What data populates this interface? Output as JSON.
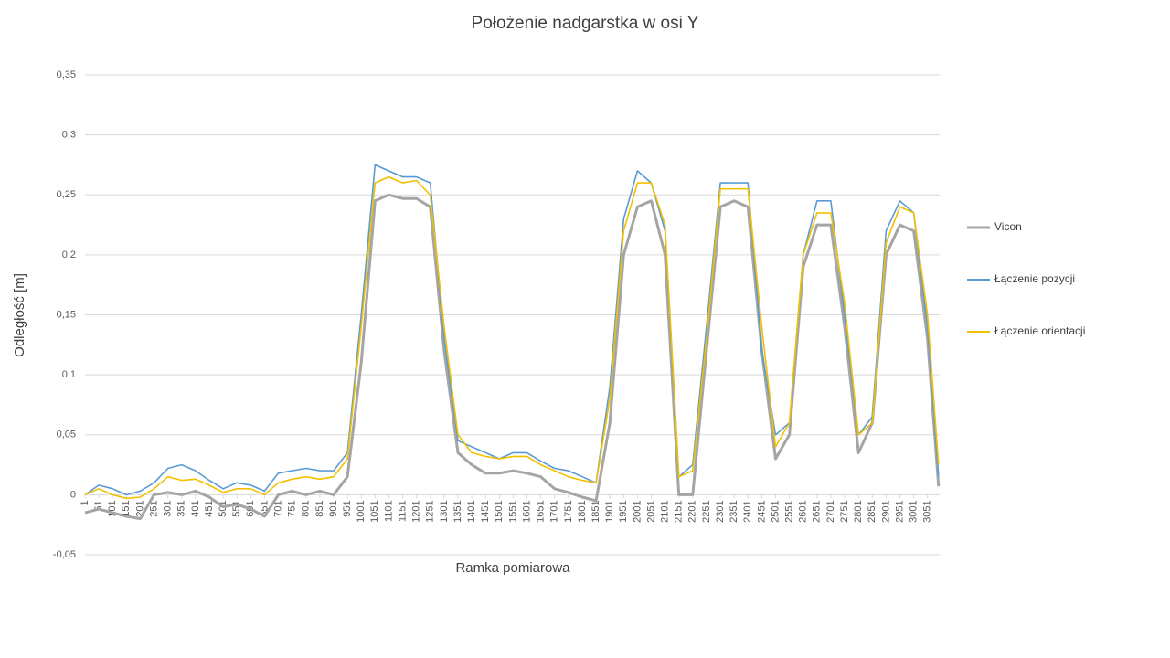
{
  "chart_data": {
    "type": "line",
    "title": "Położenie nadgarstka w osi Y",
    "xlabel": "Ramka pomiarowa",
    "ylabel": "Odległość [m]",
    "x": [
      1,
      51,
      101,
      151,
      201,
      251,
      301,
      351,
      401,
      451,
      501,
      551,
      601,
      651,
      701,
      751,
      801,
      851,
      901,
      951,
      1001,
      1051,
      1101,
      1151,
      1201,
      1251,
      1301,
      1351,
      1401,
      1451,
      1501,
      1551,
      1601,
      1651,
      1701,
      1751,
      1801,
      1851,
      1901,
      1951,
      2001,
      2051,
      2101,
      2151,
      2201,
      2251,
      2301,
      2351,
      2401,
      2451,
      2501,
      2551,
      2601,
      2651,
      2701,
      2751,
      2801,
      2851,
      2901,
      2951,
      3001,
      3051,
      3091
    ],
    "xlim": [
      1,
      3095
    ],
    "xticks": [
      1,
      51,
      101,
      151,
      201,
      251,
      301,
      351,
      401,
      451,
      501,
      551,
      601,
      651,
      701,
      751,
      801,
      851,
      901,
      951,
      1001,
      1051,
      1101,
      1151,
      1201,
      1251,
      1301,
      1351,
      1401,
      1451,
      1501,
      1551,
      1601,
      1651,
      1701,
      1751,
      1801,
      1851,
      1901,
      1951,
      2001,
      2051,
      2101,
      2151,
      2201,
      2251,
      2301,
      2351,
      2401,
      2451,
      2501,
      2551,
      2601,
      2651,
      2701,
      2751,
      2801,
      2851,
      2901,
      2951,
      3001,
      3051
    ],
    "ylim": [
      -0.05,
      0.35
    ],
    "yticks": [
      {
        "value": -0.05,
        "label": "-0,05"
      },
      0,
      {
        "value": 0.05,
        "label": "0,05"
      },
      {
        "value": 0.1,
        "label": "0,1"
      },
      {
        "value": 0.15,
        "label": "0,15"
      },
      {
        "value": 0.2,
        "label": "0,2"
      },
      {
        "value": 0.25,
        "label": "0,25"
      },
      {
        "value": 0.3,
        "label": "0,3"
      },
      {
        "value": 0.35,
        "label": "0,35"
      }
    ],
    "grid": true,
    "legend": "right",
    "series": [
      {
        "name": "Vicon",
        "color": "#a5a5a5",
        "values": [
          -0.015,
          -0.012,
          -0.015,
          -0.018,
          -0.02,
          0.0,
          0.002,
          0.0,
          0.003,
          -0.002,
          -0.01,
          -0.008,
          -0.012,
          -0.018,
          0.0,
          0.003,
          0.0,
          0.003,
          0.0,
          0.015,
          0.11,
          0.245,
          0.25,
          0.247,
          0.247,
          0.24,
          0.12,
          0.035,
          0.025,
          0.018,
          0.018,
          0.02,
          0.018,
          0.015,
          0.005,
          0.002,
          -0.002,
          -0.005,
          0.06,
          0.2,
          0.24,
          0.245,
          0.2,
          0.0,
          0.0,
          0.12,
          0.24,
          0.245,
          0.24,
          0.12,
          0.03,
          0.05,
          0.19,
          0.225,
          0.225,
          0.14,
          0.035,
          0.06,
          0.2,
          0.225,
          0.22,
          0.13,
          0.007
        ]
      },
      {
        "name": "Łączenie pozycji",
        "color": "#5b9bd5",
        "values": [
          0.0,
          0.008,
          0.005,
          0.0,
          0.003,
          0.01,
          0.022,
          0.025,
          0.02,
          0.012,
          0.005,
          0.01,
          0.008,
          0.003,
          0.018,
          0.02,
          0.022,
          0.02,
          0.02,
          0.035,
          0.15,
          0.275,
          0.27,
          0.265,
          0.265,
          0.26,
          0.13,
          0.045,
          0.04,
          0.035,
          0.03,
          0.035,
          0.035,
          0.028,
          0.022,
          0.02,
          0.015,
          0.01,
          0.09,
          0.23,
          0.27,
          0.26,
          0.22,
          0.015,
          0.025,
          0.14,
          0.26,
          0.26,
          0.26,
          0.12,
          0.05,
          0.06,
          0.2,
          0.245,
          0.245,
          0.15,
          0.05,
          0.065,
          0.22,
          0.245,
          0.235,
          0.14,
          0.015
        ]
      },
      {
        "name": "Łączenie orientacji",
        "color": "#f2c000",
        "values": [
          0.0,
          0.005,
          0.0,
          -0.003,
          -0.002,
          0.005,
          0.015,
          0.012,
          0.013,
          0.008,
          0.002,
          0.005,
          0.005,
          0.0,
          0.01,
          0.013,
          0.015,
          0.013,
          0.015,
          0.03,
          0.14,
          0.26,
          0.265,
          0.26,
          0.262,
          0.25,
          0.14,
          0.05,
          0.035,
          0.032,
          0.03,
          0.032,
          0.032,
          0.025,
          0.02,
          0.015,
          0.012,
          0.01,
          0.08,
          0.22,
          0.26,
          0.26,
          0.225,
          0.015,
          0.02,
          0.13,
          0.255,
          0.255,
          0.255,
          0.14,
          0.04,
          0.06,
          0.2,
          0.235,
          0.235,
          0.16,
          0.05,
          0.06,
          0.21,
          0.24,
          0.235,
          0.15,
          0.025
        ]
      }
    ]
  }
}
